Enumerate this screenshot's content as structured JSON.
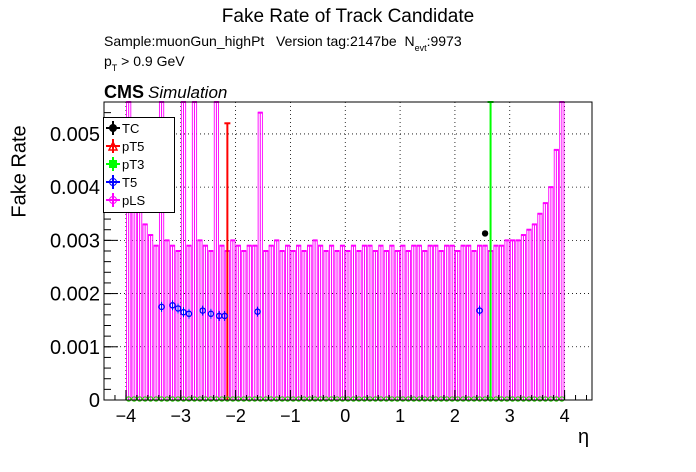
{
  "title": "Fake Rate of Track Candidate",
  "info": {
    "sample": "Sample:muonGun_highPt",
    "version": "Version tag:2147be",
    "nevt_prefix": "N",
    "nevt_sub": "evt",
    "nevt_value": ":9973",
    "pt_prefix": "p",
    "pt_sub": "T",
    "pt_cut": " > 0.9 GeV"
  },
  "cms": {
    "label": "CMS",
    "sublabel": "Simulation"
  },
  "legend": [
    {
      "label": "TC",
      "color": "#000000"
    },
    {
      "label": "pT5",
      "color": "#ff0000"
    },
    {
      "label": "pT3",
      "color": "#00ff00"
    },
    {
      "label": "T5",
      "color": "#0000ff"
    },
    {
      "label": "pLS",
      "color": "#ff00ff"
    }
  ],
  "chart_data": {
    "type": "bar",
    "title": "Fake Rate of Track Candidate",
    "xlabel": "η",
    "ylabel": "Fake Rate",
    "xlim": [
      -4.4,
      4.5
    ],
    "ylim": [
      0,
      0.0056
    ],
    "xticks": [
      -4,
      -3,
      -2,
      -1,
      0,
      1,
      2,
      3,
      4
    ],
    "xtick_labels": [
      "−4",
      "−3",
      "−2",
      "−1",
      "0",
      "1",
      "2",
      "3",
      "4"
    ],
    "yticks": [
      0,
      0.001,
      0.002,
      0.003,
      0.004,
      0.005
    ],
    "ytick_labels": [
      "0",
      "0.001",
      "0.002",
      "0.003",
      "0.004",
      "0.005"
    ],
    "grid": true,
    "legend_position": "top-left",
    "bin_edges_range": [
      -4,
      4
    ],
    "n_bins": 80,
    "series": [
      {
        "name": "pLS",
        "color": "#ff00ff",
        "values": [
          0.0056,
          0.0045,
          0.0037,
          0.0033,
          0.0031,
          0.0029,
          0.0056,
          0.003,
          0.0029,
          0.0028,
          0.0056,
          0.0029,
          0.0056,
          0.003,
          0.0029,
          0.0028,
          0.0056,
          0.0029,
          0.0028,
          0.003,
          0.0029,
          0.0028,
          0.0029,
          0.0029,
          0.0054,
          0.0028,
          0.0029,
          0.003,
          0.0028,
          0.0029,
          0.0028,
          0.0029,
          0.0028,
          0.0029,
          0.003,
          0.0029,
          0.0028,
          0.0029,
          0.0028,
          0.0029,
          0.0028,
          0.0029,
          0.0028,
          0.0029,
          0.0029,
          0.0028,
          0.0029,
          0.0028,
          0.0029,
          0.0028,
          0.0029,
          0.0028,
          0.0029,
          0.0029,
          0.0028,
          0.0029,
          0.0029,
          0.0028,
          0.0029,
          0.0029,
          0.0028,
          0.0029,
          0.0029,
          0.0028,
          0.0029,
          0.0029,
          0.0028,
          0.0029,
          0.0029,
          0.003,
          0.003,
          0.003,
          0.0031,
          0.0032,
          0.0033,
          0.0035,
          0.0037,
          0.004,
          0.0047,
          0.0056
        ]
      },
      {
        "name": "pT5",
        "color": "#ff0000",
        "values": [
          0,
          0,
          0,
          0,
          0,
          0,
          0,
          0,
          0,
          0,
          0,
          0,
          0,
          0,
          0,
          0,
          0,
          0,
          0.0052,
          0,
          0,
          0,
          0,
          0,
          0,
          0,
          0,
          0,
          0,
          0,
          0,
          0,
          0,
          0,
          0,
          0,
          0,
          0,
          0,
          0,
          0,
          0,
          0,
          0,
          0,
          0,
          0,
          0,
          0,
          0,
          0,
          0,
          0,
          0,
          0,
          0,
          0,
          0,
          0,
          0,
          0,
          0,
          0,
          0,
          0,
          0,
          0,
          0,
          0,
          0,
          0,
          0,
          0,
          0,
          0,
          0,
          0,
          0,
          0,
          0
        ]
      },
      {
        "name": "pT3",
        "color": "#00ff00",
        "values": [
          0,
          0,
          0,
          0,
          0,
          0,
          0,
          0,
          0,
          0,
          0,
          0,
          0,
          0,
          0,
          0,
          0,
          0,
          0,
          0,
          0,
          0,
          0,
          0,
          0,
          0,
          0,
          0,
          0,
          0,
          0,
          0,
          0,
          0,
          0,
          0,
          0,
          0,
          0,
          0,
          0,
          0,
          0,
          0,
          0,
          0,
          0,
          0,
          0,
          0,
          0,
          0,
          0,
          0,
          0,
          0,
          0,
          0,
          0,
          0,
          0,
          0,
          0,
          0,
          0,
          0,
          0.0056,
          0,
          0,
          0,
          0,
          0,
          0,
          0,
          0,
          0,
          0,
          0,
          0,
          0
        ]
      },
      {
        "name": "T5",
        "color": "#0000ff",
        "points": [
          {
            "x": -3.35,
            "y": 0.00175
          },
          {
            "x": -3.15,
            "y": 0.00178
          },
          {
            "x": -3.05,
            "y": 0.00172
          },
          {
            "x": -2.95,
            "y": 0.00165
          },
          {
            "x": -2.85,
            "y": 0.00162
          },
          {
            "x": -2.6,
            "y": 0.00168
          },
          {
            "x": -2.45,
            "y": 0.00162
          },
          {
            "x": -2.3,
            "y": 0.00158
          },
          {
            "x": -2.2,
            "y": 0.00158
          },
          {
            "x": -1.6,
            "y": 0.00166
          },
          {
            "x": 2.45,
            "y": 0.00168
          }
        ]
      },
      {
        "name": "TC",
        "color": "#000000",
        "points": [
          {
            "x": 2.55,
            "y": 0.00313
          }
        ]
      }
    ]
  }
}
